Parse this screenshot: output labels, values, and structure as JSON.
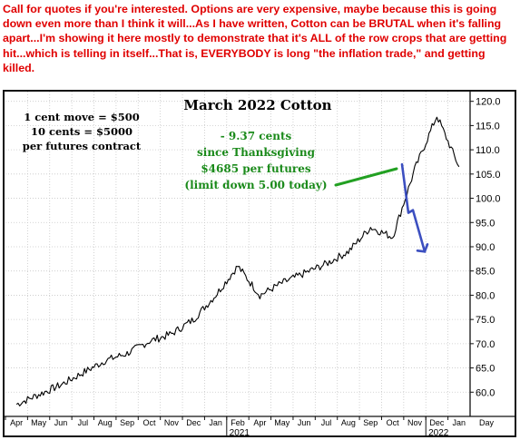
{
  "annotation_note": "Call for quotes if you're interested. Options are very expensive, maybe because this is going down even more than I think it will...As I have written, Cotton can be BRUTAL when it's falling apart...I'm showing it here mostly to demonstrate that it's ALL of the row crops that are getting hit...which is telling in itself...That is, EVERYBODY is long \"the inflation trade,\" and getting killed.",
  "chart_data": {
    "type": "line",
    "title": "March 2022 Cotton",
    "xlabel": "Day",
    "ylabel": "",
    "ylim": [
      55,
      122
    ],
    "y_ticks": [
      "60.0",
      "65.0",
      "70.0",
      "75.0",
      "80.0",
      "85.0",
      "90.0",
      "95.0",
      "100.0",
      "105.0",
      "110.0",
      "115.0",
      "120.0"
    ],
    "x_month_labels": [
      "Apr",
      "May",
      "Jun",
      "Jul",
      "Aug",
      "Sep",
      "Oct",
      "Nov",
      "Dec",
      "Jan",
      "Feb",
      "Apr",
      "May",
      "Jun",
      "Jul",
      "Aug",
      "Sep",
      "Oct",
      "Nov",
      "Dec",
      "Jan"
    ],
    "x_year_labels": [
      "2021",
      "2022"
    ],
    "grid": true,
    "series": [
      {
        "x": [
          "2020-04",
          "2020-05",
          "2020-06",
          "2020-07",
          "2020-08",
          "2020-09",
          "2020-10",
          "2020-11",
          "2020-12",
          "2021-01",
          "2021-02",
          "2021-03",
          "2021-04",
          "2021-05",
          "2021-06",
          "2021-07",
          "2021-08",
          "2021-09",
          "2021-10",
          "2021-11",
          "2021-12"
        ],
        "values": [
          57.5,
          59.5,
          61.5,
          64.0,
          66.5,
          68.0,
          70.5,
          72.0,
          75.0,
          80.0,
          86.0,
          80.0,
          82.5,
          84.5,
          86.5,
          89.0,
          94.0,
          92.0,
          106.0,
          117.0,
          106.5
        ]
      }
    ],
    "annotations": {
      "contract_info": [
        "1 cent move = $500",
        "10 cents = $5000",
        "per futures contract"
      ],
      "change": [
        "- 9.37 cents",
        "since Thanksgiving",
        "$4685 per futures",
        "(limit down 5.00 today)"
      ],
      "forecast": [
        107.0,
        97.0,
        89.0
      ]
    },
    "colors": {
      "price": "#000000",
      "note_text": "#e00000",
      "annotation_green": "#1a8a1a",
      "trendline": "#22a022",
      "forecast_arrow": "#3c4fc0",
      "grid": "#c8c8c8"
    }
  }
}
